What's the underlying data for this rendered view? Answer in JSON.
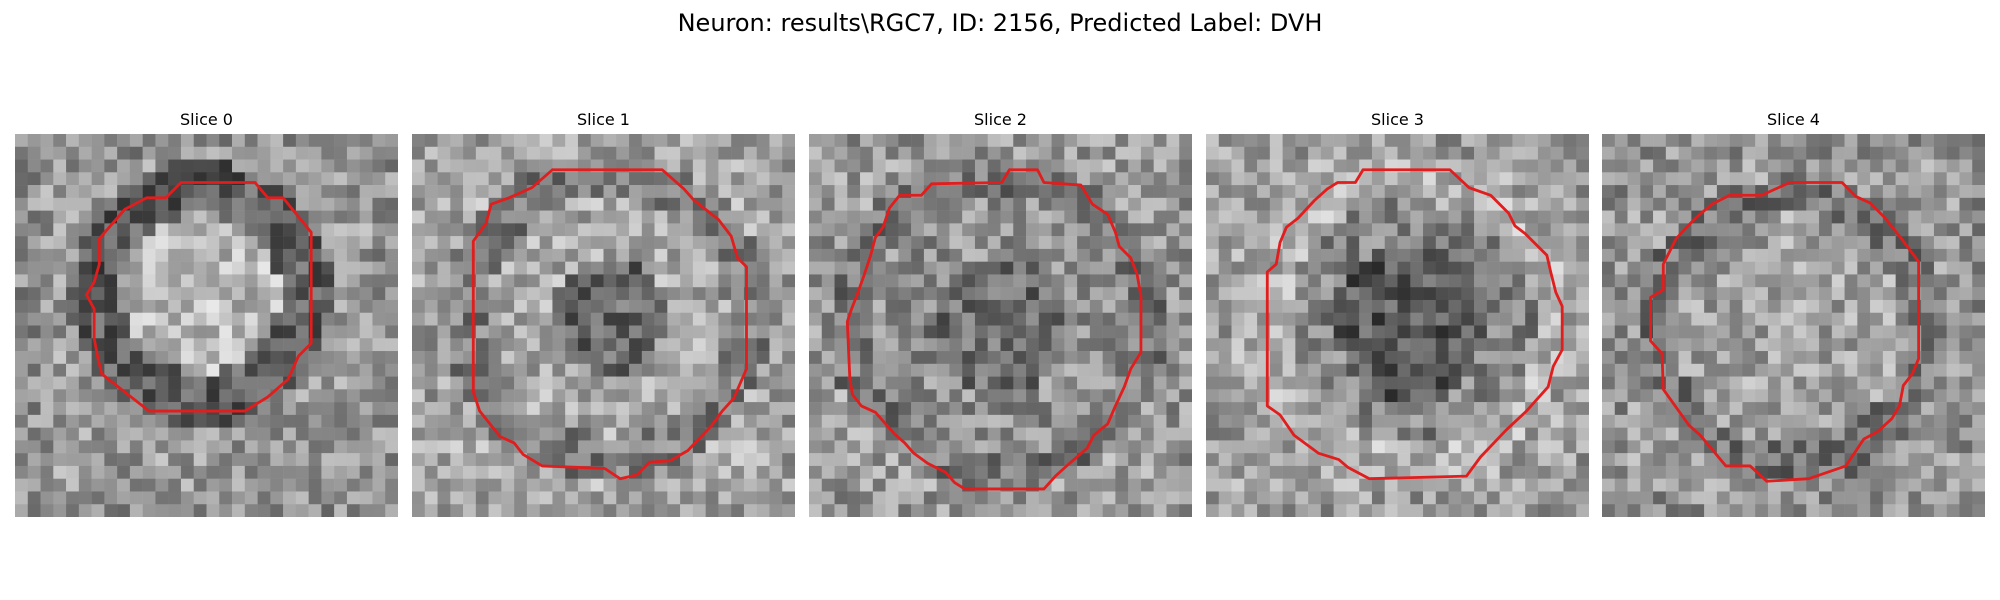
{
  "figure": {
    "title": "Neuron: results\\RGC7, ID: 2156, Predicted Label: DVH"
  },
  "panels": [
    {
      "label": "Slice 0",
      "contour_color": "#e11d1d",
      "contour_description": "red roi contour"
    },
    {
      "label": "Slice 1",
      "contour_color": "#e11d1d",
      "contour_description": "red roi contour"
    },
    {
      "label": "Slice 2",
      "contour_color": "#e11d1d",
      "contour_description": "red roi contour"
    },
    {
      "label": "Slice 3",
      "contour_color": "#e11d1d",
      "contour_description": "red roi contour"
    },
    {
      "label": "Slice 4",
      "contour_color": "#e11d1d",
      "contour_description": "red roi contour"
    }
  ]
}
